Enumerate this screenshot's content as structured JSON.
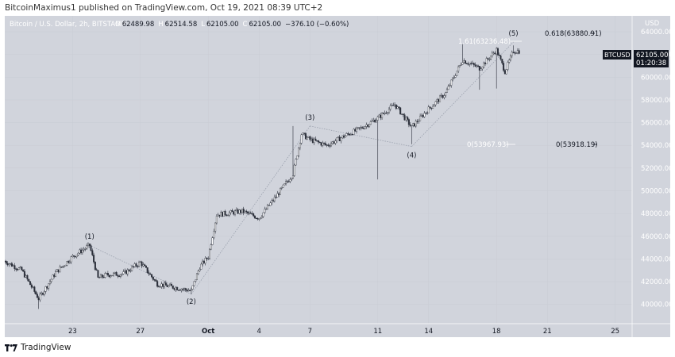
{
  "header": {
    "publisher": "BitcoinMaximus1 published on TradingView.com, Oct 19, 2021 08:39 UTC+2"
  },
  "legend": {
    "symbol": "Bitcoin / U.S. Dollar, 2h, BITSTAMP",
    "open": "62489.98",
    "high": "62514.58",
    "low": "62105.00",
    "close": "62105.00",
    "change": "−376.10 (−0.60%)"
  },
  "price_axis": {
    "currency": "USD",
    "ticks": [
      "64000.00",
      "62000.00",
      "60000.00",
      "58000.00",
      "56000.00",
      "54000.00",
      "52000.00",
      "50000.00",
      "48000.00",
      "46000.00",
      "44000.00",
      "42000.00",
      "40000.00"
    ]
  },
  "time_axis": {
    "ticks": [
      "23",
      "27",
      "Oct",
      "4",
      "7",
      "11",
      "14",
      "18",
      "21",
      "25"
    ]
  },
  "badge": {
    "symbol": "BTCUSD",
    "price": "62105.00",
    "countdown": "01:20:38"
  },
  "fib_labels": {
    "ext_161": "1.61(63236.48)",
    "ext_0618": "0.618(63880.91)",
    "zero_a": "0(53967.93)",
    "zero_b": "0(53918.19)"
  },
  "wave_labels": [
    "(1)",
    "(2)",
    "(3)",
    "(4)",
    "(5)"
  ],
  "footer": {
    "brand": "TradingView"
  },
  "colors": {
    "bull": "#ffffff",
    "bear": "#2a2e39",
    "panel": "#d1d4dc",
    "badge": "#131722"
  },
  "chart_data": {
    "type": "candlestick",
    "title": "Bitcoin / U.S. Dollar, 2h, BITSTAMP",
    "xlabel": "",
    "ylabel": "USD",
    "ylim": [
      38300,
      65400
    ],
    "x_range": [
      "Sep 19, 2021",
      "Oct 26, 2021"
    ],
    "price_anchors": [
      {
        "date": "Sep 19",
        "price": 43800
      },
      {
        "date": "Sep 20",
        "price": 43000
      },
      {
        "date": "Sep 21",
        "price": 40500
      },
      {
        "date": "Sep 22",
        "price": 42800
      },
      {
        "date": "Sep 23",
        "price": 44200
      },
      {
        "date": "Sep 24",
        "price": 45200
      },
      {
        "date": "Sep 24",
        "price": 42300
      },
      {
        "date": "Sep 25",
        "price": 42600
      },
      {
        "date": "Sep 26",
        "price": 42700
      },
      {
        "date": "Sep 27",
        "price": 43700
      },
      {
        "date": "Sep 28",
        "price": 41800
      },
      {
        "date": "Sep 29",
        "price": 41500
      },
      {
        "date": "Sep 30",
        "price": 41200
      },
      {
        "date": "Sep 30",
        "price": 43300
      },
      {
        "date": "Oct 1",
        "price": 44200
      },
      {
        "date": "Oct 1",
        "price": 47900
      },
      {
        "date": "Oct 2",
        "price": 48000
      },
      {
        "date": "Oct 3",
        "price": 48200
      },
      {
        "date": "Oct 4",
        "price": 47600
      },
      {
        "date": "Oct 5",
        "price": 49500
      },
      {
        "date": "Oct 6",
        "price": 51500
      },
      {
        "date": "Oct 6",
        "price": 55000
      },
      {
        "date": "Oct 7",
        "price": 54500
      },
      {
        "date": "Oct 8",
        "price": 54000
      },
      {
        "date": "Oct 9",
        "price": 54800
      },
      {
        "date": "Oct 10",
        "price": 55500
      },
      {
        "date": "Oct 11",
        "price": 56400
      },
      {
        "date": "Oct 12",
        "price": 57600
      },
      {
        "date": "Oct 13",
        "price": 55600
      },
      {
        "date": "Oct 14",
        "price": 57200
      },
      {
        "date": "Oct 15",
        "price": 58600
      },
      {
        "date": "Oct 16",
        "price": 61500
      },
      {
        "date": "Oct 17",
        "price": 60800
      },
      {
        "date": "Oct 18",
        "price": 62400
      },
      {
        "date": "Oct 18",
        "price": 60500
      },
      {
        "date": "Oct 19",
        "price": 62300
      }
    ],
    "wicks": [
      {
        "date": "Sep 21",
        "low": 39600
      },
      {
        "date": "Sep 24",
        "high": 45200
      },
      {
        "date": "Sep 30",
        "low": 40900
      },
      {
        "date": "Oct 6",
        "high": 55700
      },
      {
        "date": "Oct 11",
        "low": 51000
      },
      {
        "date": "Oct 13",
        "low": 54100
      },
      {
        "date": "Oct 16",
        "high": 62900
      },
      {
        "date": "Oct 17",
        "low": 58900
      },
      {
        "date": "Oct 18",
        "low": 59000
      },
      {
        "date": "Oct 19",
        "high": 62800
      }
    ],
    "wave_points": [
      {
        "label": "(1)",
        "date": "Sep 24",
        "price": 45200
      },
      {
        "label": "(2)",
        "date": "Sep 30",
        "price": 40900
      },
      {
        "label": "(3)",
        "date": "Oct 7",
        "price": 55700
      },
      {
        "label": "(4)",
        "date": "Oct 13",
        "price": 53900
      },
      {
        "label": "(5)",
        "date": "Oct 19",
        "price": 63100
      }
    ],
    "levels": [
      {
        "label": "1.61(63236.48)",
        "price": 63236.48
      },
      {
        "label": "0.618(63880.91)",
        "price": 63880.91
      },
      {
        "label": "0(53967.93)",
        "price": 53967.93
      },
      {
        "label": "0(53918.19)",
        "price": 53918.19
      }
    ],
    "last_price": 62105.0
  }
}
